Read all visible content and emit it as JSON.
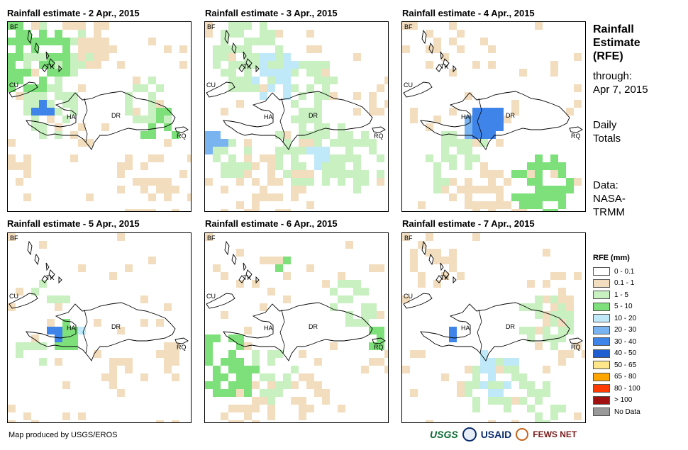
{
  "panels": [
    {
      "title": "Rainfall estimate - 2 Apr., 2015",
      "date": "2 Apr., 2015"
    },
    {
      "title": "Rainfall estimate - 3 Apr., 2015",
      "date": "3 Apr., 2015"
    },
    {
      "title": "Rainfall estimate - 4 Apr., 2015",
      "date": "4 Apr., 2015"
    },
    {
      "title": "Rainfall estimate - 5 Apr., 2015",
      "date": "5 Apr., 2015"
    },
    {
      "title": "Rainfall estimate - 6 Apr., 2015",
      "date": "6 Apr., 2015"
    },
    {
      "title": "Rainfall estimate - 7 Apr., 2015",
      "date": "7 Apr., 2015"
    }
  ],
  "map_labels": {
    "bf": "BF",
    "cu": "CU",
    "tk": "TK",
    "ha": "HA",
    "dr": "DR",
    "rq": "RQ"
  },
  "side": {
    "title_line1": "Rainfall",
    "title_line2": "Estimate",
    "title_line3": "(RFE)",
    "through_label": "through:",
    "through_date": "Apr 7, 2015",
    "totals_line1": "Daily",
    "totals_line2": "Totals",
    "data_line1": "Data:",
    "data_line2": "NASA-",
    "data_line3": "TRMM"
  },
  "legend": {
    "title": "RFE (mm)",
    "items": [
      {
        "label": "0 - 0.1",
        "color": "#ffffff"
      },
      {
        "label": "0.1 - 1",
        "color": "#f2ddbf"
      },
      {
        "label": "1 - 5",
        "color": "#c8f0c0"
      },
      {
        "label": "5 - 10",
        "color": "#7ee07a"
      },
      {
        "label": "10 - 20",
        "color": "#bfe8f8"
      },
      {
        "label": "20 - 30",
        "color": "#7ab4f0"
      },
      {
        "label": "30 - 40",
        "color": "#3f84e8"
      },
      {
        "label": "40 - 50",
        "color": "#1f5ed0"
      },
      {
        "label": "50 - 65",
        "color": "#ffe68a"
      },
      {
        "label": "65 - 80",
        "color": "#ffa500"
      },
      {
        "label": "80 - 100",
        "color": "#ff3a00"
      },
      {
        "label": "> 100",
        "color": "#a01010"
      },
      {
        "label": "No Data",
        "color": "#999999"
      }
    ]
  },
  "credit": "Map produced by USGS/EROS",
  "logos": {
    "usgs": "USGS",
    "usaid": "USAID",
    "fews": "FEWS NET"
  }
}
